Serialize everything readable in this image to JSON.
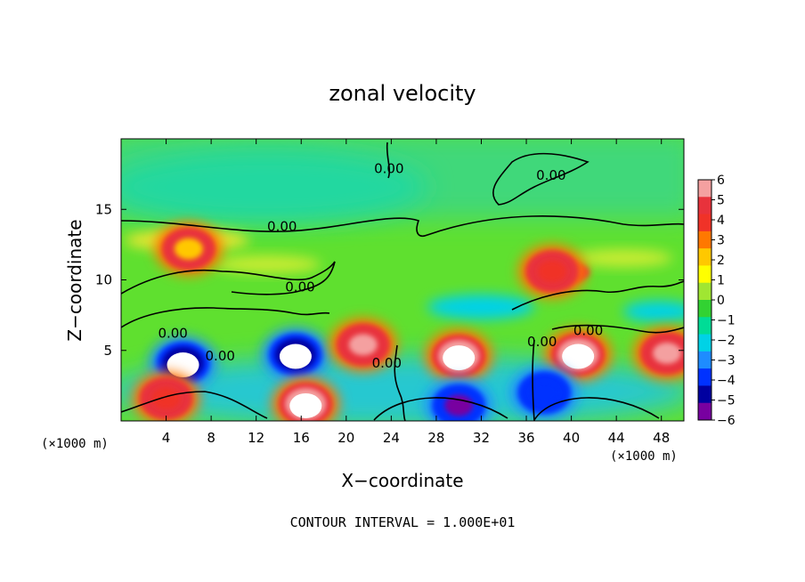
{
  "chart_data": {
    "type": "heatmap",
    "title": "zonal velocity",
    "xlabel": "X−coordinate",
    "ylabel": "Z−coordinate",
    "x_unit_left": "(×1000 m)",
    "x_unit_right": "(×1000 m)",
    "footer": "CONTOUR INTERVAL = 1.000E+01",
    "xlim": [
      0,
      50
    ],
    "ylim": [
      0,
      20
    ],
    "x_ticks": [
      4,
      8,
      12,
      16,
      20,
      24,
      28,
      32,
      36,
      40,
      44,
      48
    ],
    "y_ticks": [
      5,
      10,
      15
    ],
    "colorbar": {
      "min": -6,
      "max": 6,
      "ticks": [
        6,
        5,
        4,
        3,
        2,
        1,
        0,
        -1,
        -2,
        -3,
        -4,
        -5,
        -6
      ],
      "tick_labels": [
        "6",
        "5",
        "4",
        "3",
        "2",
        "1",
        "0",
        "−1",
        "−2",
        "−3",
        "−4",
        "−5",
        "−6"
      ],
      "colors": [
        "#f4a0a0",
        "#e8323c",
        "#f03228",
        "#ff7800",
        "#ffc800",
        "#ffff00",
        "#a0e632",
        "#32d232",
        "#00dc96",
        "#00d2e6",
        "#1e8cff",
        "#0032ff",
        "#0000a0",
        "#7800a0"
      ]
    },
    "contour_labels": [
      {
        "text": "0.00",
        "x": 14.3,
        "y": 13.8
      },
      {
        "text": "0.00",
        "x": 38.2,
        "y": 17.4
      },
      {
        "text": "0.00",
        "x": 23.8,
        "y": 17.9
      },
      {
        "text": "0.00",
        "x": 15.9,
        "y": 9.5
      },
      {
        "text": "0.00",
        "x": 4.6,
        "y": 6.2
      },
      {
        "text": "0.00",
        "x": 8.8,
        "y": 4.6
      },
      {
        "text": "0.00",
        "x": 23.6,
        "y": 4.1
      },
      {
        "text": "0.00",
        "x": 37.4,
        "y": 5.6
      },
      {
        "text": "0.00",
        "x": 41.5,
        "y": 6.4
      }
    ],
    "features": [
      {
        "x": 5.5,
        "y": 4.1,
        "value": -8
      },
      {
        "x": 4.0,
        "y": 1.6,
        "value": 4
      },
      {
        "x": 15.5,
        "y": 4.7,
        "value": -8
      },
      {
        "x": 16.4,
        "y": 1.2,
        "value": 7
      },
      {
        "x": 21.5,
        "y": 5.4,
        "value": 6
      },
      {
        "x": 30.0,
        "y": 4.6,
        "value": 8
      },
      {
        "x": 30.0,
        "y": 1.1,
        "value": -6
      },
      {
        "x": 40.6,
        "y": 4.7,
        "value": 8
      },
      {
        "x": 37.6,
        "y": 2.0,
        "value": -5
      },
      {
        "x": 48.5,
        "y": 4.8,
        "value": 6
      },
      {
        "x": 38.3,
        "y": 10.6,
        "value": 4
      },
      {
        "x": 6.0,
        "y": 12.2,
        "value": 2
      }
    ]
  }
}
